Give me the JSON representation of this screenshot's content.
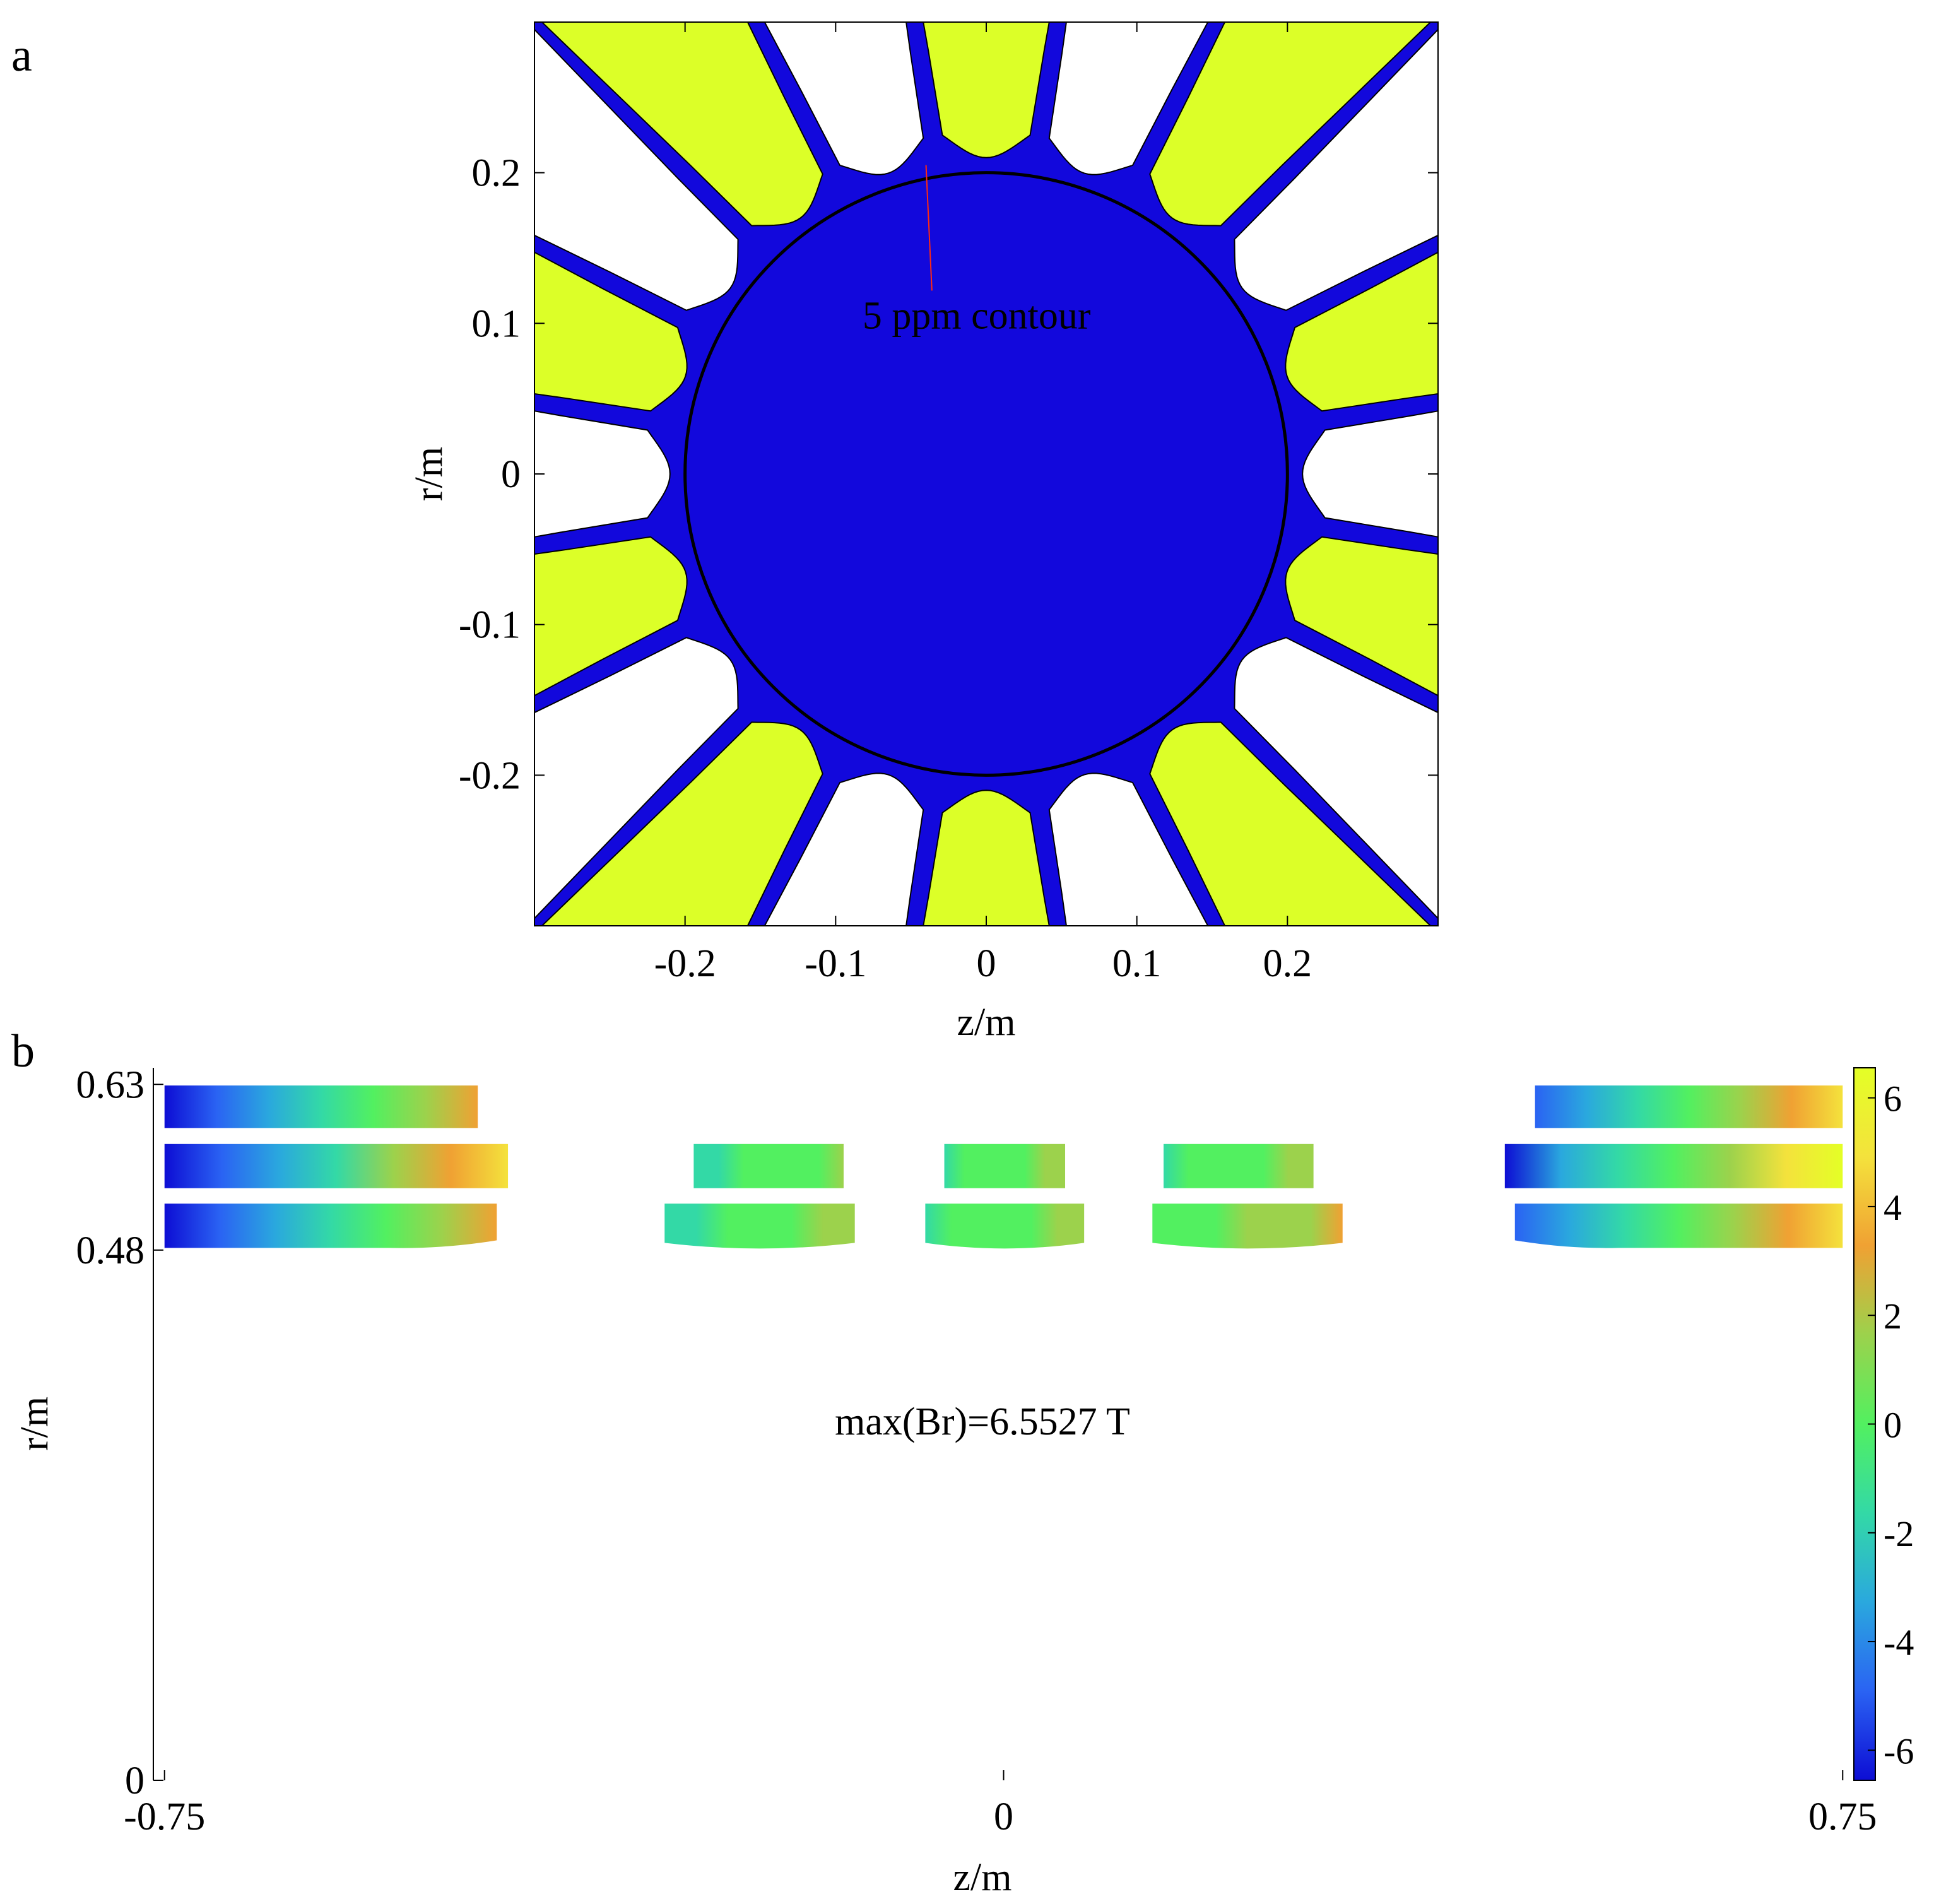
{
  "panels": {
    "a": {
      "label": "a"
    },
    "b": {
      "label": "b"
    }
  },
  "chart_data": [
    {
      "type": "contour",
      "panel": "a",
      "xlabel": "z/m",
      "ylabel": "r/m",
      "xlim": [
        -0.3,
        0.3
      ],
      "ylim": [
        -0.3,
        0.3
      ],
      "xticks": [
        -0.2,
        -0.1,
        0,
        0.1,
        0.2
      ],
      "yticks": [
        -0.2,
        -0.1,
        0,
        0.1,
        0.2
      ],
      "xtick_labels": [
        "-0.2",
        "-0.1",
        "0",
        "0.1",
        "0.2"
      ],
      "ytick_labels": [
        "-0.2",
        "-0.1",
        "0",
        "0.1",
        "0.2"
      ],
      "grid": false,
      "colors": {
        "inside": "#1208dc",
        "positive_lobe": "#dcff28",
        "negative_lobe": "#ffffff",
        "circle": "#000000",
        "annotation": "#ff2a10"
      },
      "circle": {
        "center": [
          0,
          0
        ],
        "radius": 0.2
      },
      "lobes": {
        "count": 20,
        "inner_radius": 0.21,
        "half_width_deg": 8.2
      },
      "annotation": {
        "text": "5 ppm contour",
        "x": 0.01,
        "y": 0.105,
        "arrow_to": [
          -0.04,
          0.205
        ]
      }
    },
    {
      "type": "heatmap",
      "panel": "b",
      "xlabel": "z/m",
      "ylabel": "r/m",
      "xlim": [
        -0.76,
        0.76
      ],
      "ylim": [
        0,
        0.645
      ],
      "xticks": [
        -0.75,
        0,
        0.75
      ],
      "yticks": [
        0,
        0.48,
        0.63
      ],
      "xtick_labels": [
        "-0.75",
        "0",
        "0.75"
      ],
      "ytick_labels": [
        "0",
        "0.48",
        "0.63"
      ],
      "annotation": "max(Br)=6.5527 T",
      "colorbar": {
        "min": -6.5527,
        "max": 6.5527,
        "ticks": [
          -6,
          -4,
          -2,
          0,
          2,
          4,
          6
        ],
        "tick_labels": [
          "-6",
          "-4",
          "-2",
          "0",
          "2",
          "4",
          "6"
        ],
        "colormap": [
          "#0d0dd4",
          "#2a63f3",
          "#2aa8de",
          "#33d9a6",
          "#52f060",
          "#9cd24c",
          "#f0a133",
          "#f4e23c",
          "#e4ff26"
        ]
      },
      "coils": [
        {
          "z": [
            -0.75,
            -0.47
          ],
          "r": [
            0.5905,
            0.629
          ],
          "br": [
            -6.5,
            3.2
          ]
        },
        {
          "z": [
            -0.75,
            -0.443
          ],
          "r": [
            0.536,
            0.576
          ],
          "br": [
            -6.5,
            4.7
          ]
        },
        {
          "z": [
            -0.75,
            -0.453
          ],
          "r": [
            0.482,
            0.522
          ],
          "br": [
            -6.5,
            3.6
          ],
          "taper_from": -0.55
        },
        {
          "z": [
            -0.277,
            -0.143
          ],
          "r": [
            0.536,
            0.576
          ],
          "br": [
            -1.5,
            1.0
          ]
        },
        {
          "z": [
            -0.303,
            -0.133
          ],
          "r": [
            0.482,
            0.522
          ],
          "br": [
            -1.8,
            2.0
          ],
          "taper_from": -0.22
        },
        {
          "z": [
            -0.053,
            0.055
          ],
          "r": [
            0.536,
            0.576
          ],
          "br": [
            -1.2,
            1.4
          ]
        },
        {
          "z": [
            -0.07,
            0.072
          ],
          "r": [
            0.482,
            0.522
          ],
          "br": [
            -0.9,
            1.5
          ],
          "taper_from": 0.0
        },
        {
          "z": [
            0.143,
            0.277
          ],
          "r": [
            0.536,
            0.576
          ],
          "br": [
            -1.0,
            1.5
          ]
        },
        {
          "z": [
            0.133,
            0.303
          ],
          "r": [
            0.482,
            0.522
          ],
          "br": [
            -0.8,
            2.5
          ],
          "taper_from": 0.22
        },
        {
          "z": [
            0.475,
            0.75
          ],
          "r": [
            0.5905,
            0.629
          ],
          "br": [
            -4.5,
            4.8
          ]
        },
        {
          "z": [
            0.448,
            0.75
          ],
          "r": [
            0.536,
            0.576
          ],
          "br": [
            -6.0,
            6.55
          ]
        },
        {
          "z": [
            0.457,
            0.75
          ],
          "r": [
            0.482,
            0.522
          ],
          "br": [
            -5.0,
            5.0
          ],
          "taper_from": 0.55
        }
      ]
    }
  ]
}
